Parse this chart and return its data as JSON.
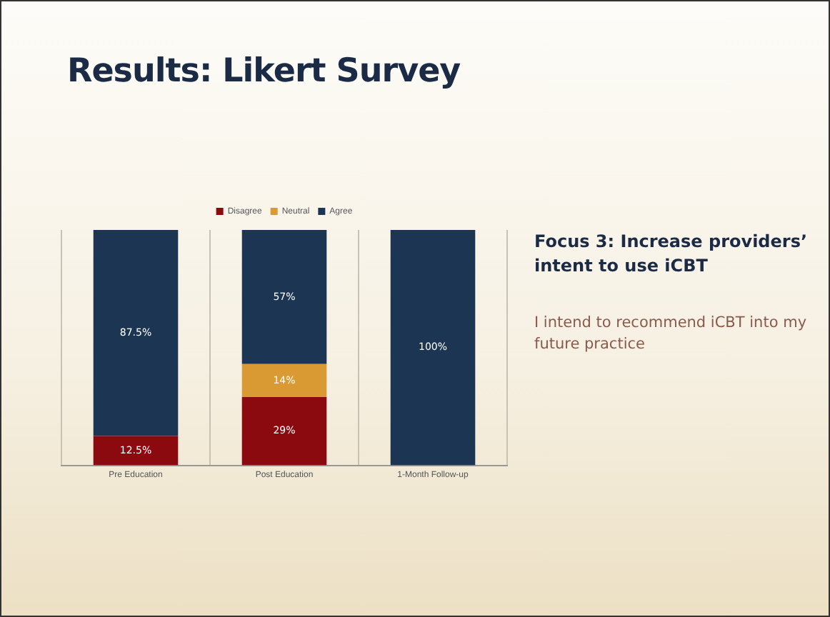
{
  "chart_data": {
    "type": "bar",
    "title": "Results: Likert Survey",
    "annotations": [
      "Focus 3: Increase providers’ intent to use iCBT",
      "I intend to recommend iCBT into my future practice"
    ],
    "categories": [
      "Pre Education",
      "Post Education",
      "1-Month Follow-up"
    ],
    "series": [
      {
        "name": "Disagree",
        "color": "#8b0a10",
        "values": [
          12.5,
          29,
          null
        ],
        "value_labels": [
          "12.5%",
          "29%",
          null
        ]
      },
      {
        "name": "Neutral",
        "color": "#d99a33",
        "values": [
          null,
          14,
          null
        ],
        "value_labels": [
          null,
          "14%",
          null
        ]
      },
      {
        "name": "Agree",
        "color": "#1c3553",
        "values": [
          87.5,
          57,
          100
        ],
        "value_labels": [
          "87.5%",
          "57%",
          "100%"
        ]
      }
    ],
    "stacked": true,
    "ylim": [
      0,
      100
    ],
    "grid": "x",
    "legend": "top"
  }
}
